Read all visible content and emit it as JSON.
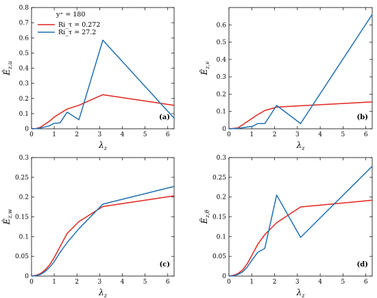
{
  "legend": {
    "title": "y⁺ = 180",
    "entries": [
      {
        "label": "Ri_τ = 0.272",
        "color": "#e0241b"
      },
      {
        "label": "Ri_τ = 27.2",
        "color": "#1f6fb2"
      }
    ]
  },
  "chart_data": [
    {
      "type": "line",
      "panel": "(a)",
      "xlabel": "λz",
      "ylabel": "Ê z,u",
      "xlim": [
        0,
        6.28
      ],
      "ylim": [
        0,
        0.8
      ],
      "xticks": [
        0,
        1,
        2,
        3,
        4,
        5,
        6
      ],
      "yticks": [
        0,
        0.1,
        0.2,
        0.3,
        0.4,
        0.5,
        0.6,
        0.7,
        0.8
      ],
      "ytick_labels": [
        "0",
        "0.1",
        "0.2",
        "0.3",
        "0.4",
        "0.5",
        "0.6",
        "0.7",
        "0.8"
      ],
      "series": [
        {
          "name": "Ri_τ = 0.272",
          "color": "#e0241b",
          "x": [
            0,
            0.2,
            0.39,
            0.59,
            0.79,
            0.98,
            1.18,
            1.57,
            2.09,
            3.14,
            6.28
          ],
          "y": [
            0,
            0.002,
            0.01,
            0.03,
            0.05,
            0.075,
            0.095,
            0.13,
            0.155,
            0.225,
            0.155
          ]
        },
        {
          "name": "Ri_τ = 27.2",
          "color": "#1f6fb2",
          "x": [
            0,
            0.2,
            0.39,
            0.59,
            0.79,
            0.98,
            1.26,
            1.57,
            2.09,
            3.14,
            6.28
          ],
          "y": [
            0,
            0.001,
            0.005,
            0.012,
            0.02,
            0.035,
            0.04,
            0.11,
            0.06,
            0.585,
            0.07
          ]
        }
      ]
    },
    {
      "type": "line",
      "panel": "(b)",
      "xlabel": "λz",
      "ylabel": "Ê z,v",
      "xlim": [
        0,
        6.28
      ],
      "ylim": [
        0,
        0.7
      ],
      "xticks": [
        0,
        1,
        2,
        3,
        4,
        5,
        6
      ],
      "yticks": [
        0,
        0.1,
        0.2,
        0.3,
        0.4,
        0.5,
        0.6
      ],
      "ytick_labels": [
        "0",
        "0.1",
        "0.2",
        "0.3",
        "0.4",
        "0.5",
        "0.6"
      ],
      "series": [
        {
          "name": "Ri_τ = 0.272",
          "color": "#e0241b",
          "x": [
            0,
            0.39,
            0.79,
            1.18,
            1.57,
            2.09,
            3.14,
            6.28
          ],
          "y": [
            0,
            0.005,
            0.04,
            0.075,
            0.105,
            0.125,
            0.133,
            0.155
          ]
        },
        {
          "name": "Ri_τ = 27.2",
          "color": "#1f6fb2",
          "x": [
            0,
            0.39,
            0.79,
            1.05,
            1.26,
            1.57,
            2.09,
            3.14,
            6.28
          ],
          "y": [
            0,
            0.002,
            0.01,
            0.015,
            0.03,
            0.03,
            0.135,
            0.03,
            0.66
          ]
        }
      ]
    },
    {
      "type": "line",
      "panel": "(c)",
      "xlabel": "λz",
      "ylabel": "Ê z,w",
      "xlim": [
        0,
        6.28
      ],
      "ylim": [
        0,
        0.3
      ],
      "xticks": [
        0,
        1,
        2,
        3,
        4,
        5,
        6
      ],
      "yticks": [
        0,
        0.05,
        0.1,
        0.15,
        0.2,
        0.25,
        0.3
      ],
      "ytick_labels": [
        "0",
        "0.05",
        "0.1",
        "0.15",
        "0.2",
        "0.25",
        "0.3"
      ],
      "series": [
        {
          "name": "Ri_τ = 0.272",
          "color": "#e0241b",
          "x": [
            0,
            0.2,
            0.39,
            0.59,
            0.79,
            0.98,
            1.26,
            1.57,
            2.09,
            3.14,
            6.28
          ],
          "y": [
            0,
            0.002,
            0.006,
            0.015,
            0.028,
            0.045,
            0.075,
            0.108,
            0.138,
            0.176,
            0.203
          ]
        },
        {
          "name": "Ri_τ = 27.2",
          "color": "#1f6fb2",
          "x": [
            0,
            0.2,
            0.39,
            0.59,
            0.79,
            0.98,
            1.26,
            1.57,
            2.09,
            3.14,
            6.28
          ],
          "y": [
            0,
            0.001,
            0.004,
            0.011,
            0.022,
            0.035,
            0.06,
            0.085,
            0.12,
            0.182,
            0.227
          ]
        }
      ]
    },
    {
      "type": "line",
      "panel": "(d)",
      "xlabel": "λz",
      "ylabel": "Ê z,θ",
      "xlim": [
        0,
        6.28
      ],
      "ylim": [
        0,
        0.3
      ],
      "xticks": [
        0,
        1,
        2,
        3,
        4,
        5,
        6
      ],
      "yticks": [
        0,
        0.05,
        0.1,
        0.15,
        0.2,
        0.25,
        0.3
      ],
      "ytick_labels": [
        "0",
        "0.05",
        "0.1",
        "0.15",
        "0.2",
        "0.25",
        "0.3"
      ],
      "series": [
        {
          "name": "Ri_τ = 0.272",
          "color": "#e0241b",
          "x": [
            0,
            0.2,
            0.39,
            0.59,
            0.79,
            0.98,
            1.26,
            1.57,
            2.09,
            3.14,
            6.28
          ],
          "y": [
            0,
            0.002,
            0.006,
            0.015,
            0.03,
            0.05,
            0.08,
            0.105,
            0.135,
            0.175,
            0.192
          ]
        },
        {
          "name": "Ri_τ = 27.2",
          "color": "#1f6fb2",
          "x": [
            0,
            0.2,
            0.39,
            0.59,
            0.79,
            0.98,
            1.26,
            1.57,
            2.09,
            3.14,
            6.28
          ],
          "y": [
            0,
            0.001,
            0.004,
            0.01,
            0.022,
            0.038,
            0.06,
            0.07,
            0.205,
            0.098,
            0.278
          ]
        }
      ]
    }
  ]
}
